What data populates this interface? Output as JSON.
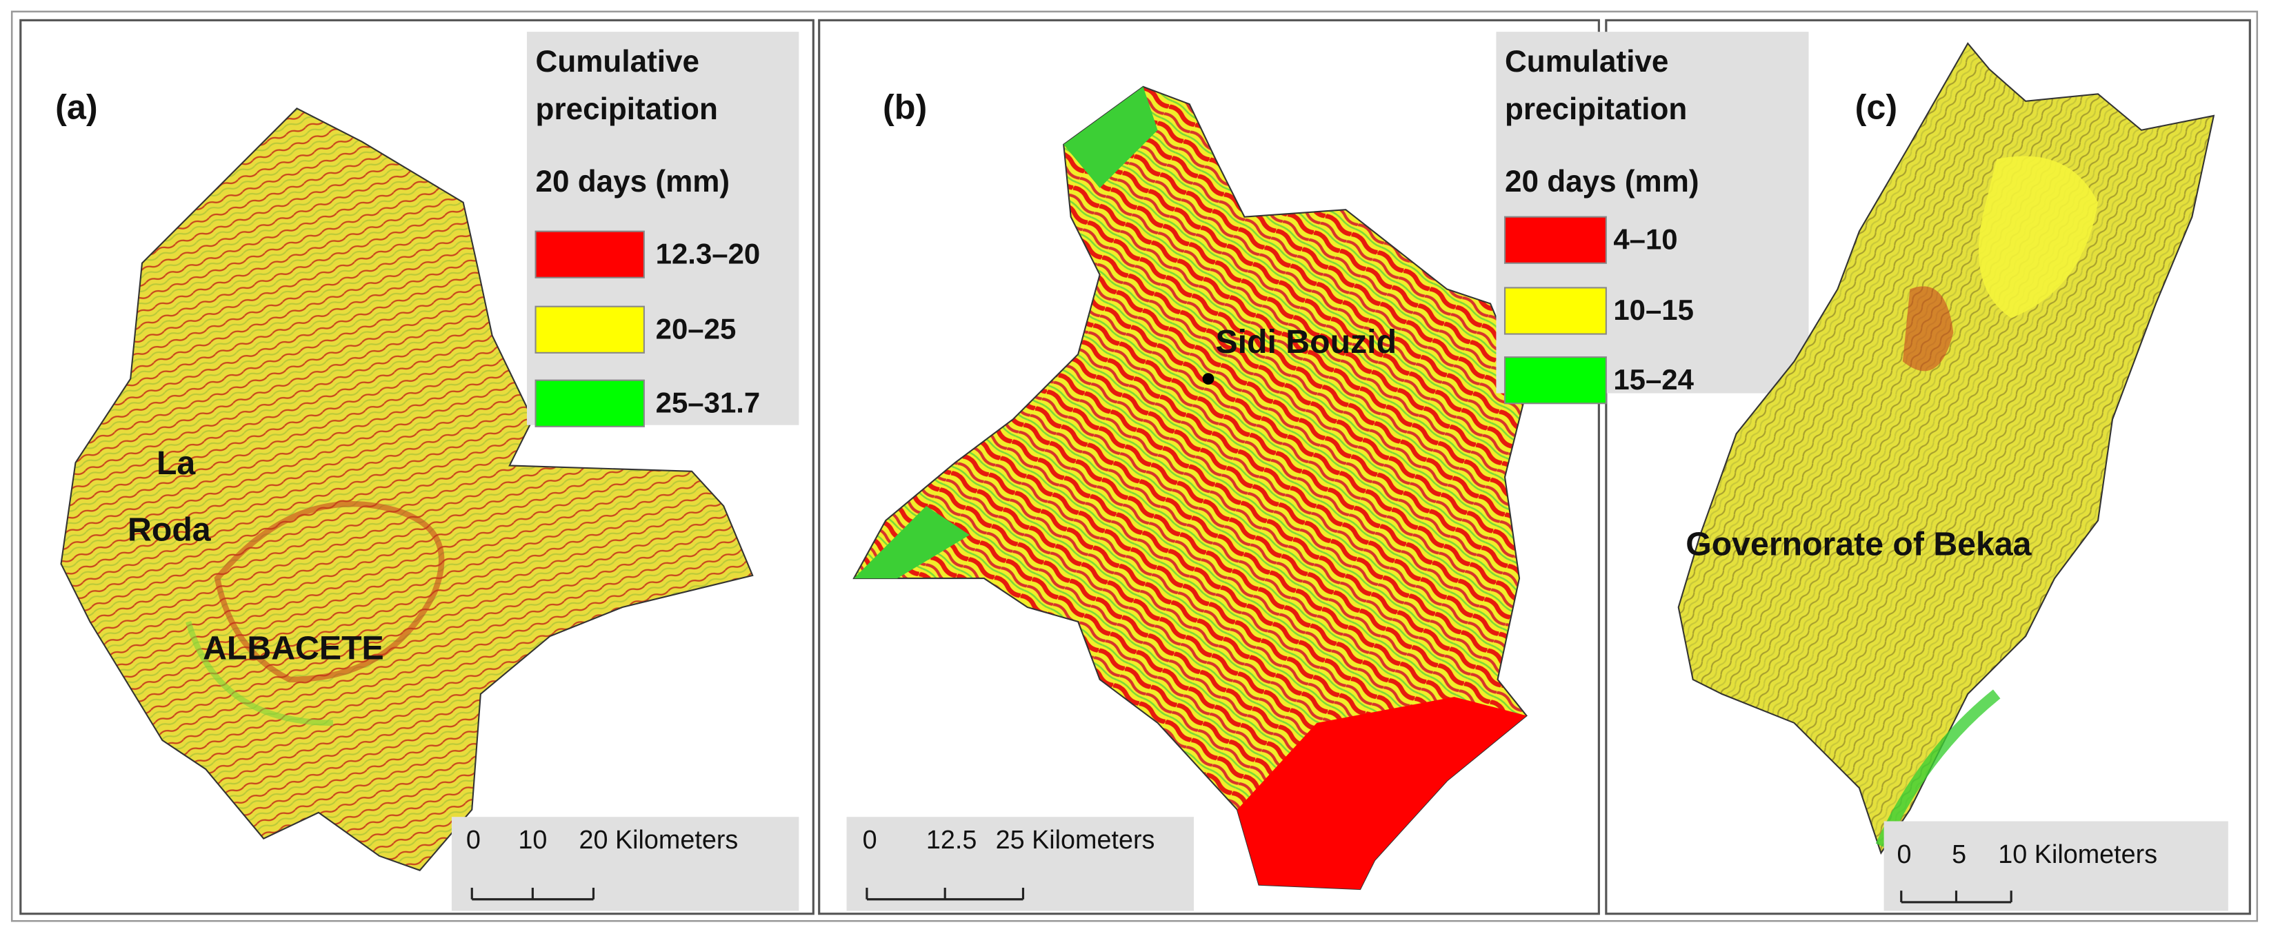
{
  "panels": [
    {
      "label": "(a)",
      "legend": {
        "title": [
          "Cumulative",
          "precipitation",
          "20 days (mm)"
        ],
        "items": [
          {
            "label": "12.3–20",
            "color": "#ff0000"
          },
          {
            "label": "20–25",
            "color": "#ffff00"
          },
          {
            "label": "25–31.7",
            "color": "#00ff00"
          }
        ]
      },
      "places": [
        "La",
        "Roda",
        "ALBACETE"
      ],
      "scale": [
        "0",
        "10",
        "20 Kilometers"
      ]
    },
    {
      "label": "(b)",
      "legend": {
        "title": [
          "Cumulative",
          "precipitation",
          "20 days (mm)"
        ],
        "items": [
          {
            "label": "4–10",
            "color": "#ff0000"
          },
          {
            "label": "10–15",
            "color": "#ffff00"
          },
          {
            "label": "15–24",
            "color": "#00ff00"
          }
        ]
      },
      "places": [
        "Sidi Bouzid"
      ],
      "scale": [
        "0",
        "12.5",
        "25 Kilometers"
      ]
    },
    {
      "label": "(c)",
      "places": [
        "Governorate of Bekaa"
      ],
      "scale": [
        "0",
        "5",
        "10 Kilometers"
      ]
    }
  ]
}
